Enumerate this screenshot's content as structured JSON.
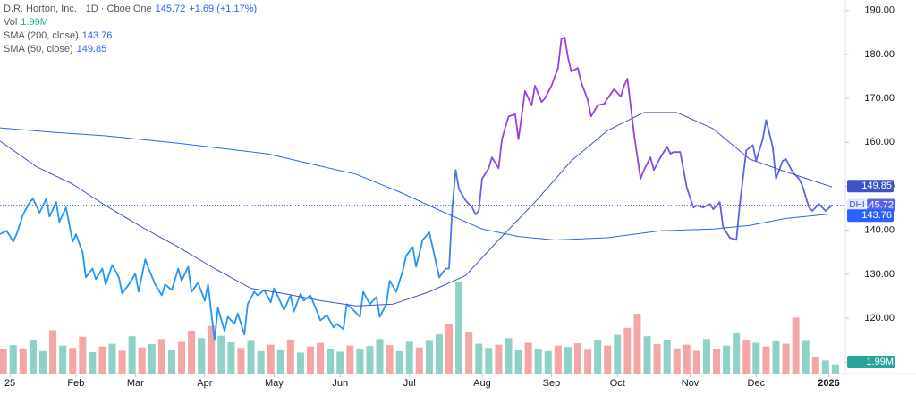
{
  "chart_data": {
    "type": "line",
    "header": {
      "name": "D.R. Horton, Inc. · 1D · Cboe One",
      "change": "+1.69 (+1.17%)",
      "symbol": "DHI"
    },
    "xlim": [
      0,
      256
    ],
    "ylim": [
      107.4,
      192.4
    ],
    "xticks": [
      {
        "value": 3,
        "label": "25"
      },
      {
        "value": 23,
        "label": "Feb"
      },
      {
        "value": 41,
        "label": "Mar"
      },
      {
        "value": 62,
        "label": "Apr"
      },
      {
        "value": 83,
        "label": "May"
      },
      {
        "value": 103,
        "label": "Jun"
      },
      {
        "value": 124,
        "label": "Jul"
      },
      {
        "value": 146,
        "label": "Aug"
      },
      {
        "value": 167,
        "label": "Sep"
      },
      {
        "value": 187,
        "label": "Oct"
      },
      {
        "value": 209,
        "label": "Nov"
      },
      {
        "value": 229,
        "label": "Dec"
      },
      {
        "value": 251,
        "label": "2026"
      }
    ],
    "yticks": [
      {
        "value": 110,
        "label": "110.00"
      },
      {
        "value": 120,
        "label": "120.00"
      },
      {
        "value": 130,
        "label": "130.00"
      },
      {
        "value": 140,
        "label": "140.00"
      },
      {
        "value": 150,
        "label": "150.00"
      },
      {
        "value": 160,
        "label": "160.00"
      },
      {
        "value": 170,
        "label": "170.00"
      },
      {
        "value": 180,
        "label": "180.00"
      },
      {
        "value": 190,
        "label": "190.00"
      }
    ],
    "series": [
      {
        "name": "D.R. Horton, Inc.",
        "colors": [
          "#2196f3",
          "#9b3fe0",
          "#9b3fe0",
          "#5b63e6"
        ],
        "x": [
          0,
          2,
          4,
          5,
          7,
          9,
          10,
          12,
          14,
          15,
          17,
          18,
          20,
          22,
          23,
          25,
          26,
          28,
          29,
          31,
          32,
          34,
          36,
          37,
          39,
          41,
          42,
          44,
          45,
          47,
          49,
          50,
          52,
          54,
          55,
          57,
          58,
          60,
          62,
          63,
          64,
          65,
          66,
          68,
          69,
          71,
          72,
          74,
          75,
          77,
          78,
          80,
          82,
          83,
          84,
          86,
          88,
          89,
          91,
          92,
          94,
          96,
          97,
          99,
          101,
          102,
          104,
          105,
          107,
          109,
          110,
          112,
          114,
          115,
          117,
          118,
          120,
          122,
          123,
          125,
          126,
          128,
          130,
          131,
          133,
          135,
          136,
          137,
          138,
          139,
          141,
          143,
          144,
          145,
          146,
          148,
          149,
          151,
          152,
          154,
          156,
          157,
          159,
          161,
          162,
          164,
          165,
          167,
          169,
          170,
          171,
          172,
          173,
          175,
          176,
          178,
          179,
          181,
          183,
          184,
          186,
          188,
          189,
          190,
          192,
          194,
          195,
          197,
          198,
          200,
          202,
          203,
          204,
          206,
          208,
          210,
          211,
          213,
          215,
          216,
          218,
          219,
          221,
          223,
          224,
          226,
          228,
          229,
          231,
          232,
          234,
          235,
          237,
          238,
          240,
          242,
          243,
          245,
          246,
          248,
          250,
          252
        ],
        "values": [
          139.1,
          139.9,
          137.4,
          139.1,
          143.6,
          146.4,
          147.2,
          144.0,
          147.2,
          143.1,
          146.4,
          141.9,
          145.2,
          137.4,
          139.1,
          135.0,
          129.3,
          131.3,
          128.9,
          131.3,
          127.7,
          132.1,
          129.3,
          125.6,
          127.7,
          130.1,
          126.0,
          133.4,
          131.3,
          127.7,
          125.2,
          127.7,
          126.4,
          131.3,
          128.5,
          131.7,
          126.0,
          128.1,
          124.0,
          127.7,
          121.1,
          115.0,
          122.4,
          117.1,
          120.3,
          118.7,
          121.1,
          116.3,
          123.2,
          126.0,
          125.2,
          126.4,
          123.6,
          126.8,
          125.2,
          121.9,
          125.2,
          121.5,
          125.6,
          124.0,
          125.2,
          121.5,
          119.5,
          120.7,
          117.9,
          118.7,
          117.5,
          123.2,
          121.9,
          120.3,
          126.0,
          123.2,
          124.8,
          120.3,
          123.2,
          128.5,
          126.0,
          130.9,
          134.2,
          136.2,
          131.7,
          137.8,
          139.5,
          136.2,
          129.3,
          131.3,
          131.3,
          145.2,
          153.7,
          149.3,
          146.8,
          145.2,
          143.6,
          144.4,
          151.7,
          154.1,
          156.6,
          154.1,
          160.7,
          165.9,
          166.4,
          160.7,
          171.7,
          168.4,
          172.9,
          169.2,
          170.0,
          172.9,
          176.9,
          183.5,
          183.9,
          179.4,
          176.1,
          176.9,
          173.7,
          169.6,
          165.9,
          168.4,
          168.8,
          170.0,
          172.1,
          170.4,
          172.9,
          174.5,
          161.9,
          151.7,
          153.7,
          156.6,
          153.7,
          156.6,
          159.0,
          157.4,
          157.8,
          157.8,
          149.7,
          145.2,
          145.6,
          145.2,
          146.0,
          144.8,
          146.4,
          140.7,
          138.3,
          137.8,
          145.6,
          158.2,
          159.4,
          155.8,
          160.7,
          165.1,
          159.0,
          151.7,
          155.8,
          156.2,
          153.3,
          151.7,
          150.1,
          145.2,
          144.4,
          146.0,
          144.4,
          145.72
        ]
      },
      {
        "name": "SMA (200, close)",
        "color": "#2962ff",
        "x": [
          0,
          16,
          32,
          54,
          81,
          108,
          122,
          135,
          146,
          157,
          168,
          184,
          200,
          216,
          227,
          238,
          252
        ],
        "values": [
          163.3,
          162.3,
          161.5,
          159.8,
          157.4,
          152.7,
          148.4,
          143.9,
          140.3,
          138.6,
          137.8,
          138.3,
          139.9,
          140.3,
          141.1,
          142.7,
          143.76
        ]
      },
      {
        "name": "SMA (50, close)",
        "color": "#3f51c8",
        "x": [
          0,
          11,
          22,
          32,
          43,
          54,
          65,
          76,
          86,
          97,
          108,
          119,
          130,
          141,
          151,
          162,
          173,
          184,
          195,
          205,
          216,
          227,
          238,
          252
        ],
        "values": [
          160.3,
          154.5,
          150.5,
          145.6,
          140.7,
          136.2,
          131.3,
          126.8,
          125.6,
          124.0,
          122.8,
          123.2,
          126.0,
          129.7,
          137.8,
          146.4,
          155.8,
          162.7,
          166.8,
          166.8,
          163.1,
          156.2,
          153.3,
          149.85
        ]
      }
    ],
    "volume": {
      "name": "Vol",
      "last_label": "1.99M",
      "ylim": [
        0,
        80
      ],
      "label_color": "#26a69a",
      "x": [
        1,
        4,
        7,
        10,
        13,
        16,
        19,
        22,
        25,
        28,
        31,
        34,
        37,
        40,
        43,
        46,
        49,
        52,
        55,
        58,
        61,
        64,
        67,
        70,
        73,
        76,
        79,
        82,
        85,
        88,
        91,
        94,
        97,
        100,
        103,
        106,
        109,
        112,
        115,
        118,
        121,
        124,
        127,
        130,
        133,
        136,
        139,
        142,
        145,
        148,
        151,
        154,
        157,
        160,
        163,
        166,
        169,
        172,
        175,
        178,
        181,
        184,
        187,
        190,
        193,
        196,
        199,
        202,
        205,
        208,
        211,
        214,
        217,
        220,
        223,
        226,
        229,
        232,
        235,
        238,
        241,
        244,
        247,
        250,
        253
      ],
      "values": [
        5.2,
        6.1,
        5.4,
        7.2,
        4.8,
        9.3,
        6.0,
        5.5,
        7.9,
        4.6,
        5.8,
        6.4,
        4.9,
        8.0,
        5.6,
        6.3,
        7.4,
        5.0,
        6.8,
        9.2,
        7.6,
        10.2,
        8.1,
        6.7,
        5.5,
        7.0,
        4.8,
        6.2,
        5.0,
        7.3,
        4.5,
        5.8,
        6.6,
        5.2,
        4.7,
        6.0,
        5.3,
        5.9,
        7.4,
        6.1,
        4.8,
        6.8,
        5.6,
        7.0,
        8.4,
        10.6,
        19.6,
        8.8,
        6.4,
        5.5,
        6.2,
        7.6,
        5.0,
        6.6,
        5.3,
        4.8,
        6.0,
        5.7,
        6.5,
        5.1,
        7.2,
        6.0,
        8.3,
        9.8,
        12.8,
        8.0,
        6.3,
        7.1,
        5.4,
        6.2,
        4.9,
        7.4,
        5.3,
        6.0,
        8.6,
        7.2,
        6.6,
        5.8,
        6.9,
        6.4,
        12.0,
        7.0,
        3.6,
        2.8,
        1.99
      ],
      "colors": [
        "#f4a6a6",
        "#8ed1c6",
        "#f4a6a6",
        "#8ed1c6",
        "#8ed1c6",
        "#f4a6a6",
        "#8ed1c6",
        "#f4a6a6",
        "#f4a6a6",
        "#8ed1c6",
        "#f4a6a6",
        "#8ed1c6",
        "#f4a6a6",
        "#8ed1c6",
        "#f4a6a6",
        "#8ed1c6",
        "#f4a6a6",
        "#8ed1c6",
        "#f4a6a6",
        "#f4a6a6",
        "#8ed1c6",
        "#f4a6a6",
        "#8ed1c6",
        "#8ed1c6",
        "#f4a6a6",
        "#8ed1c6",
        "#8ed1c6",
        "#f4a6a6",
        "#8ed1c6",
        "#f4a6a6",
        "#8ed1c6",
        "#f4a6a6",
        "#f4a6a6",
        "#8ed1c6",
        "#8ed1c6",
        "#f4a6a6",
        "#8ed1c6",
        "#8ed1c6",
        "#8ed1c6",
        "#f4a6a6",
        "#8ed1c6",
        "#8ed1c6",
        "#f4a6a6",
        "#8ed1c6",
        "#8ed1c6",
        "#f4a6a6",
        "#8ed1c6",
        "#f4a6a6",
        "#8ed1c6",
        "#8ed1c6",
        "#f4a6a6",
        "#8ed1c6",
        "#8ed1c6",
        "#f4a6a6",
        "#8ed1c6",
        "#8ed1c6",
        "#f4a6a6",
        "#8ed1c6",
        "#f4a6a6",
        "#f4a6a6",
        "#8ed1c6",
        "#f4a6a6",
        "#8ed1c6",
        "#f4a6a6",
        "#f4a6a6",
        "#8ed1c6",
        "#f4a6a6",
        "#8ed1c6",
        "#f4a6a6",
        "#f4a6a6",
        "#f4a6a6",
        "#8ed1c6",
        "#f4a6a6",
        "#8ed1c6",
        "#8ed1c6",
        "#f4a6a6",
        "#8ed1c6",
        "#f4a6a6",
        "#8ed1c6",
        "#f4a6a6",
        "#f4a6a6",
        "#8ed1c6",
        "#f4a6a6",
        "#8ed1c6",
        "#8ed1c6"
      ]
    }
  }
}
